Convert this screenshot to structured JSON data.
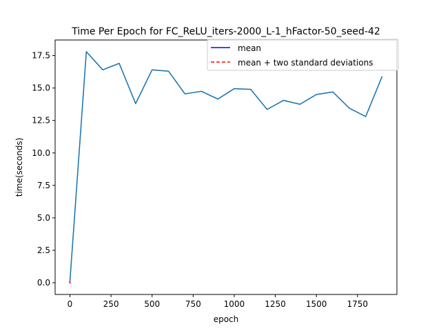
{
  "chart_data": {
    "type": "line",
    "title": "Time Per Epoch for FC_ReLU_iters-2000_L-1_hFactor-50_seed-42",
    "xlabel": "epoch",
    "ylabel": "time(seconds)",
    "xlim": [
      -90,
      1990
    ],
    "ylim": [
      -0.9,
      18.7
    ],
    "x_ticks": [
      0,
      250,
      500,
      750,
      1000,
      1250,
      1500,
      1750
    ],
    "y_ticks": [
      0.0,
      2.5,
      5.0,
      7.5,
      10.0,
      12.5,
      15.0,
      17.5
    ],
    "x_tick_labels": [
      "0",
      "250",
      "500",
      "750",
      "1000",
      "1250",
      "1500",
      "1750"
    ],
    "y_tick_labels": [
      "0.0",
      "2.5",
      "5.0",
      "7.5",
      "10.0",
      "12.5",
      "15.0",
      "17.5"
    ],
    "grid": false,
    "legend_position": "top-right",
    "legend": [
      {
        "label": "mean",
        "color": "#0000ff",
        "style": "solid"
      },
      {
        "label": "mean + two standard deviations",
        "color": "#ff0000",
        "style": "dashed"
      }
    ],
    "series": [
      {
        "color": "#1f77b4",
        "style": "solid",
        "x": [
          0,
          100,
          200,
          300,
          400,
          500,
          600,
          700,
          800,
          900,
          1000,
          1100,
          1200,
          1300,
          1400,
          1500,
          1600,
          1700,
          1800,
          1900
        ],
        "y": [
          0.1,
          17.8,
          16.4,
          16.9,
          13.8,
          16.4,
          16.3,
          14.55,
          14.75,
          14.15,
          14.95,
          14.9,
          13.35,
          14.05,
          13.75,
          14.5,
          14.7,
          13.45,
          12.8,
          15.9
        ]
      },
      {
        "color": "#ff0000",
        "style": "dashed",
        "x": [
          0
        ],
        "y": [
          0.0
        ]
      }
    ]
  }
}
